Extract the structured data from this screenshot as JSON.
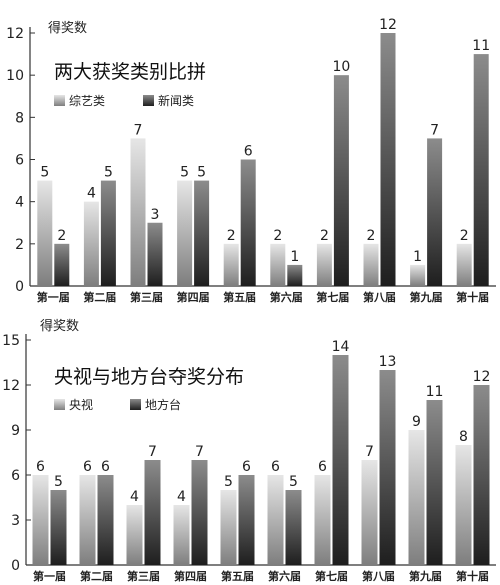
{
  "colors": {
    "series_a_light": "#e6e6e6",
    "series_a_dark": "#7e7e7e",
    "series_b_light": "#8c8c8c",
    "series_b_dark": "#1e1e1e",
    "axis": "#333333",
    "text": "#222222"
  },
  "chart_data": [
    {
      "type": "bar",
      "title": "两大获奖类别比拼",
      "ylabel": "得奖数",
      "xlabel": "",
      "ylim": [
        0,
        12
      ],
      "yticks": [
        0,
        2,
        4,
        6,
        8,
        10,
        12
      ],
      "categories": [
        "第一届",
        "第二届",
        "第三届",
        "第四届",
        "第五届",
        "第六届",
        "第七届",
        "第八届",
        "第九届",
        "第十届"
      ],
      "series": [
        {
          "name": "综艺类",
          "values": [
            5,
            4,
            7,
            5,
            2,
            2,
            2,
            2,
            1,
            2
          ]
        },
        {
          "name": "新闻类",
          "values": [
            2,
            5,
            3,
            5,
            6,
            1,
            10,
            12,
            7,
            11
          ]
        }
      ],
      "legend": "top-left",
      "grid": false
    },
    {
      "type": "bar",
      "title": "央视与地方台夺奖分布",
      "ylabel": "得奖数",
      "xlabel": "",
      "ylim": [
        0,
        15
      ],
      "yticks": [
        0,
        3,
        6,
        9,
        12,
        15
      ],
      "categories": [
        "第一届",
        "第二届",
        "第三届",
        "第四届",
        "第五届",
        "第六届",
        "第七届",
        "第八届",
        "第九届",
        "第十届"
      ],
      "series": [
        {
          "name": "央视",
          "values": [
            6,
            6,
            4,
            4,
            5,
            6,
            6,
            7,
            9,
            8
          ]
        },
        {
          "name": "地方台",
          "values": [
            5,
            6,
            7,
            7,
            6,
            5,
            14,
            13,
            11,
            12
          ]
        }
      ],
      "legend": "top-left",
      "grid": false
    }
  ]
}
